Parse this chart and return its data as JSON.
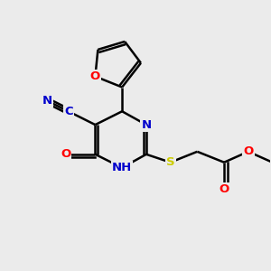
{
  "bg_color": "#ebebeb",
  "bond_color": "#000000",
  "bond_width": 1.8,
  "atom_colors": {
    "C": "#000000",
    "N": "#0000cc",
    "O": "#ff0000",
    "S": "#cccc00",
    "H": "#000000"
  },
  "font_size": 9.5
}
